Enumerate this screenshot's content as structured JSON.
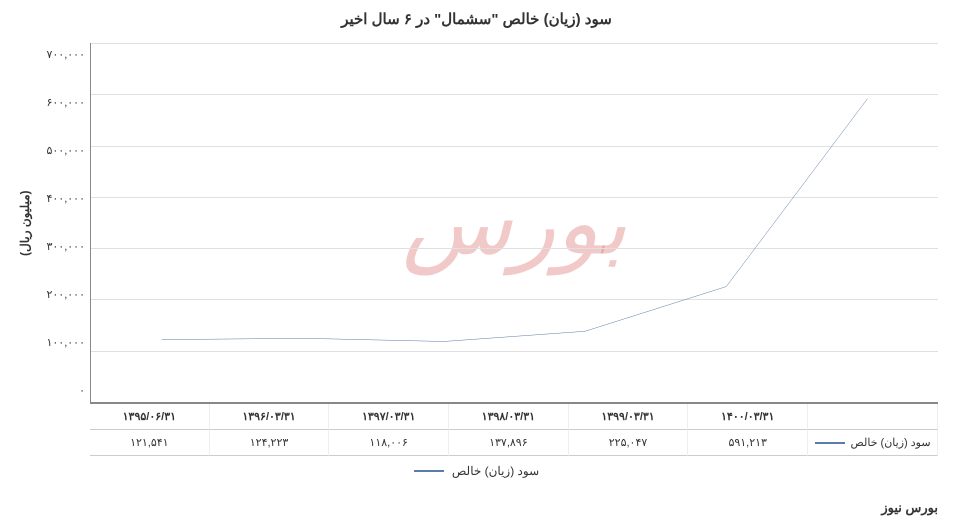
{
  "chart": {
    "type": "line",
    "title": "سود (زیان) خالص \"سشمال\" در ۶ سال اخیر",
    "y_axis_label": "(میلیون ریال)",
    "series_label": "سود (زیان) خالص",
    "ylim": [
      0,
      700000
    ],
    "ytick_step": 100000,
    "yticks": [
      "۷۰۰,۰۰۰",
      "۶۰۰,۰۰۰",
      "۵۰۰,۰۰۰",
      "۴۰۰,۰۰۰",
      "۳۰۰,۰۰۰",
      "۲۰۰,۰۰۰",
      "۱۰۰,۰۰۰",
      "۰"
    ],
    "categories": [
      "۱۳۹۵/۰۶/۳۱",
      "۱۳۹۶/۰۳/۳۱",
      "۱۳۹۷/۰۳/۳۱",
      "۱۳۹۸/۰۳/۳۱",
      "۱۳۹۹/۰۳/۳۱",
      "۱۴۰۰/۰۳/۳۱"
    ],
    "values": [
      121541,
      124223,
      118006,
      137896,
      225047,
      591213
    ],
    "value_labels": [
      "۱۲۱,۵۴۱",
      "۱۲۴,۲۲۳",
      "۱۱۸,۰۰۶",
      "۱۳۷,۸۹۶",
      "۲۲۵,۰۴۷",
      "۵۹۱,۲۱۳"
    ],
    "line_color": "#5b7ca8",
    "line_width": 2,
    "grid_color": "#e0e0e0",
    "background_color": "#ffffff",
    "axis_color": "#888888",
    "title_fontsize": 15,
    "label_fontsize": 12,
    "tick_fontsize": 11
  },
  "watermark": {
    "text": "بورس",
    "color": "rgba(200,40,40,0.25)"
  },
  "source_label": "بورس نیوز"
}
